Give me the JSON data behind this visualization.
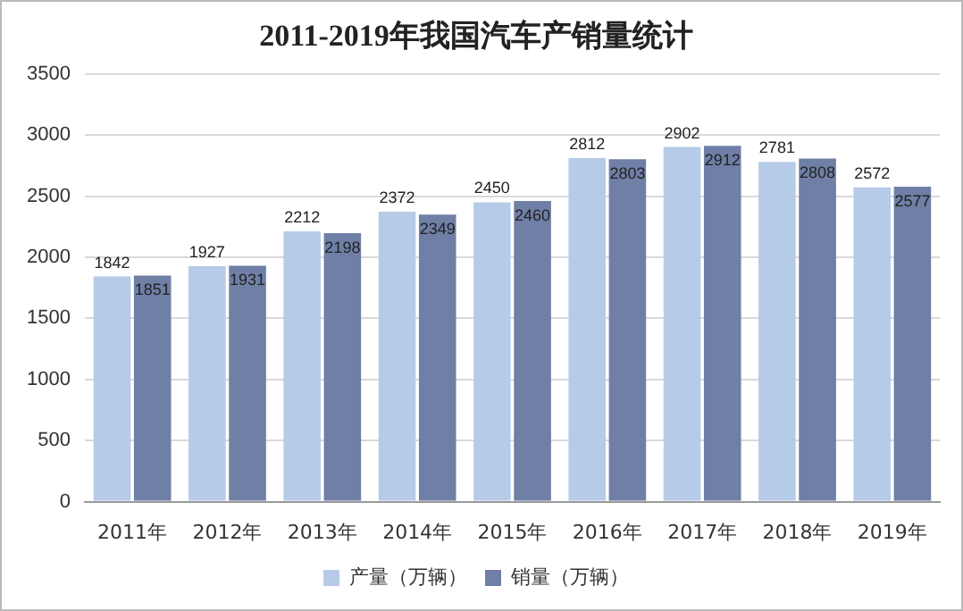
{
  "chart_data": {
    "type": "bar",
    "title": "2011-2019年我国汽车产销量统计",
    "categories": [
      "2011年",
      "2012年",
      "2013年",
      "2014年",
      "2015年",
      "2016年",
      "2017年",
      "2018年",
      "2019年"
    ],
    "series": [
      {
        "name": "产量（万辆）",
        "color": "#b6cbe8",
        "values": [
          1842,
          1927,
          2212,
          2372,
          2450,
          2812,
          2902,
          2781,
          2572
        ]
      },
      {
        "name": "销量（万辆）",
        "color": "#6f7fa6",
        "values": [
          1851,
          1931,
          2198,
          2349,
          2460,
          2803,
          2912,
          2808,
          2577
        ]
      }
    ],
    "ylim": [
      0,
      3500
    ],
    "yticks": [
      0,
      500,
      1000,
      1500,
      2000,
      2500,
      3000,
      3500
    ],
    "grid": "y",
    "legend": "bottom",
    "data_labels": true
  }
}
